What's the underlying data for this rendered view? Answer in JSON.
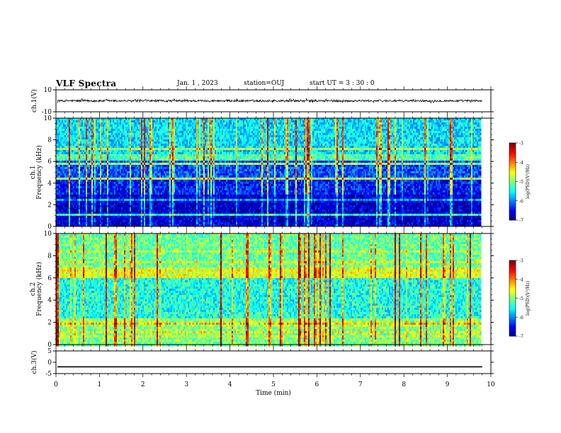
{
  "header": {
    "title": "VLF Spectra",
    "date": "Jan. 1 , 2023",
    "station": "station=OUJ",
    "start": "start UT = 3 : 30 : 0"
  },
  "colors": {
    "cmap": [
      "#00007f",
      "#0000ff",
      "#007fff",
      "#00ffff",
      "#7fff7f",
      "#ffff00",
      "#ff7f00",
      "#ff0000",
      "#7f0000"
    ]
  },
  "chart_data": [
    {
      "type": "line",
      "name": "ch1-waveform",
      "ylabel": "ch.1(V)",
      "ylim": [
        -10,
        10
      ],
      "yticks": [
        {
          "v": 10,
          "label": "10"
        },
        {
          "v": -10,
          "label": "-10"
        }
      ],
      "xlim": [
        0,
        10
      ],
      "level": 0,
      "noise_amplitude": 1
    },
    {
      "type": "heatmap",
      "name": "ch1-spectrogram",
      "ylabel": "ch.1\nFrequency (kHz)",
      "ylim": [
        0,
        10
      ],
      "yticks": [
        0,
        2,
        4,
        6,
        8,
        10
      ],
      "xlim": [
        0,
        10
      ],
      "data_end_min": 9.8,
      "colorbar": {
        "label": "log(PSD)(V²/Hz)",
        "range": [
          -7,
          -3
        ],
        "ticks": [
          -3,
          -4,
          -5,
          -6,
          -7
        ]
      },
      "bands": [
        {
          "f0": 0,
          "f1": 3,
          "level": -6.7
        },
        {
          "f0": 3,
          "f1": 4.3,
          "level": -6.4
        },
        {
          "f0": 4.3,
          "f1": 6,
          "level": -6.2
        },
        {
          "f0": 6,
          "f1": 6.6,
          "level": -5.2
        },
        {
          "f0": 6.6,
          "f1": 10,
          "level": -5.6
        }
      ]
    },
    {
      "type": "heatmap",
      "name": "ch2-spectrogram",
      "ylabel": "ch.2\nFrequency (kHz)",
      "ylim": [
        0,
        10
      ],
      "yticks": [
        0,
        2,
        4,
        6,
        8,
        10
      ],
      "xlim": [
        0,
        10
      ],
      "data_end_min": 9.8,
      "colorbar": {
        "label": "log(PSD)(V²/Hz)",
        "range": [
          -7,
          -3
        ],
        "ticks": [
          -3,
          -4,
          -5,
          -6,
          -7
        ]
      },
      "bands": [
        {
          "f0": 0,
          "f1": 1.5,
          "level": -5.0
        },
        {
          "f0": 1.5,
          "f1": 2.3,
          "level": -4.9
        },
        {
          "f0": 2.3,
          "f1": 6,
          "level": -5.4
        },
        {
          "f0": 6,
          "f1": 7,
          "level": -4.6
        },
        {
          "f0": 7,
          "f1": 10,
          "level": -5.1
        }
      ]
    },
    {
      "type": "line",
      "name": "ch3-waveform",
      "ylabel": "ch.3(V)",
      "ylim": [
        -5,
        5
      ],
      "yticks": [
        {
          "v": 5,
          "label": "5"
        },
        {
          "v": 0,
          "label": "0"
        },
        {
          "v": -5,
          "label": "-5"
        }
      ],
      "xlim": [
        0,
        10
      ],
      "level": -2,
      "noise_amplitude": 0
    }
  ],
  "xaxis": {
    "label": "Time (min)",
    "ticks": [
      "0",
      "1",
      "2",
      "3",
      "4",
      "5",
      "6",
      "7",
      "8",
      "9",
      "10"
    ]
  }
}
